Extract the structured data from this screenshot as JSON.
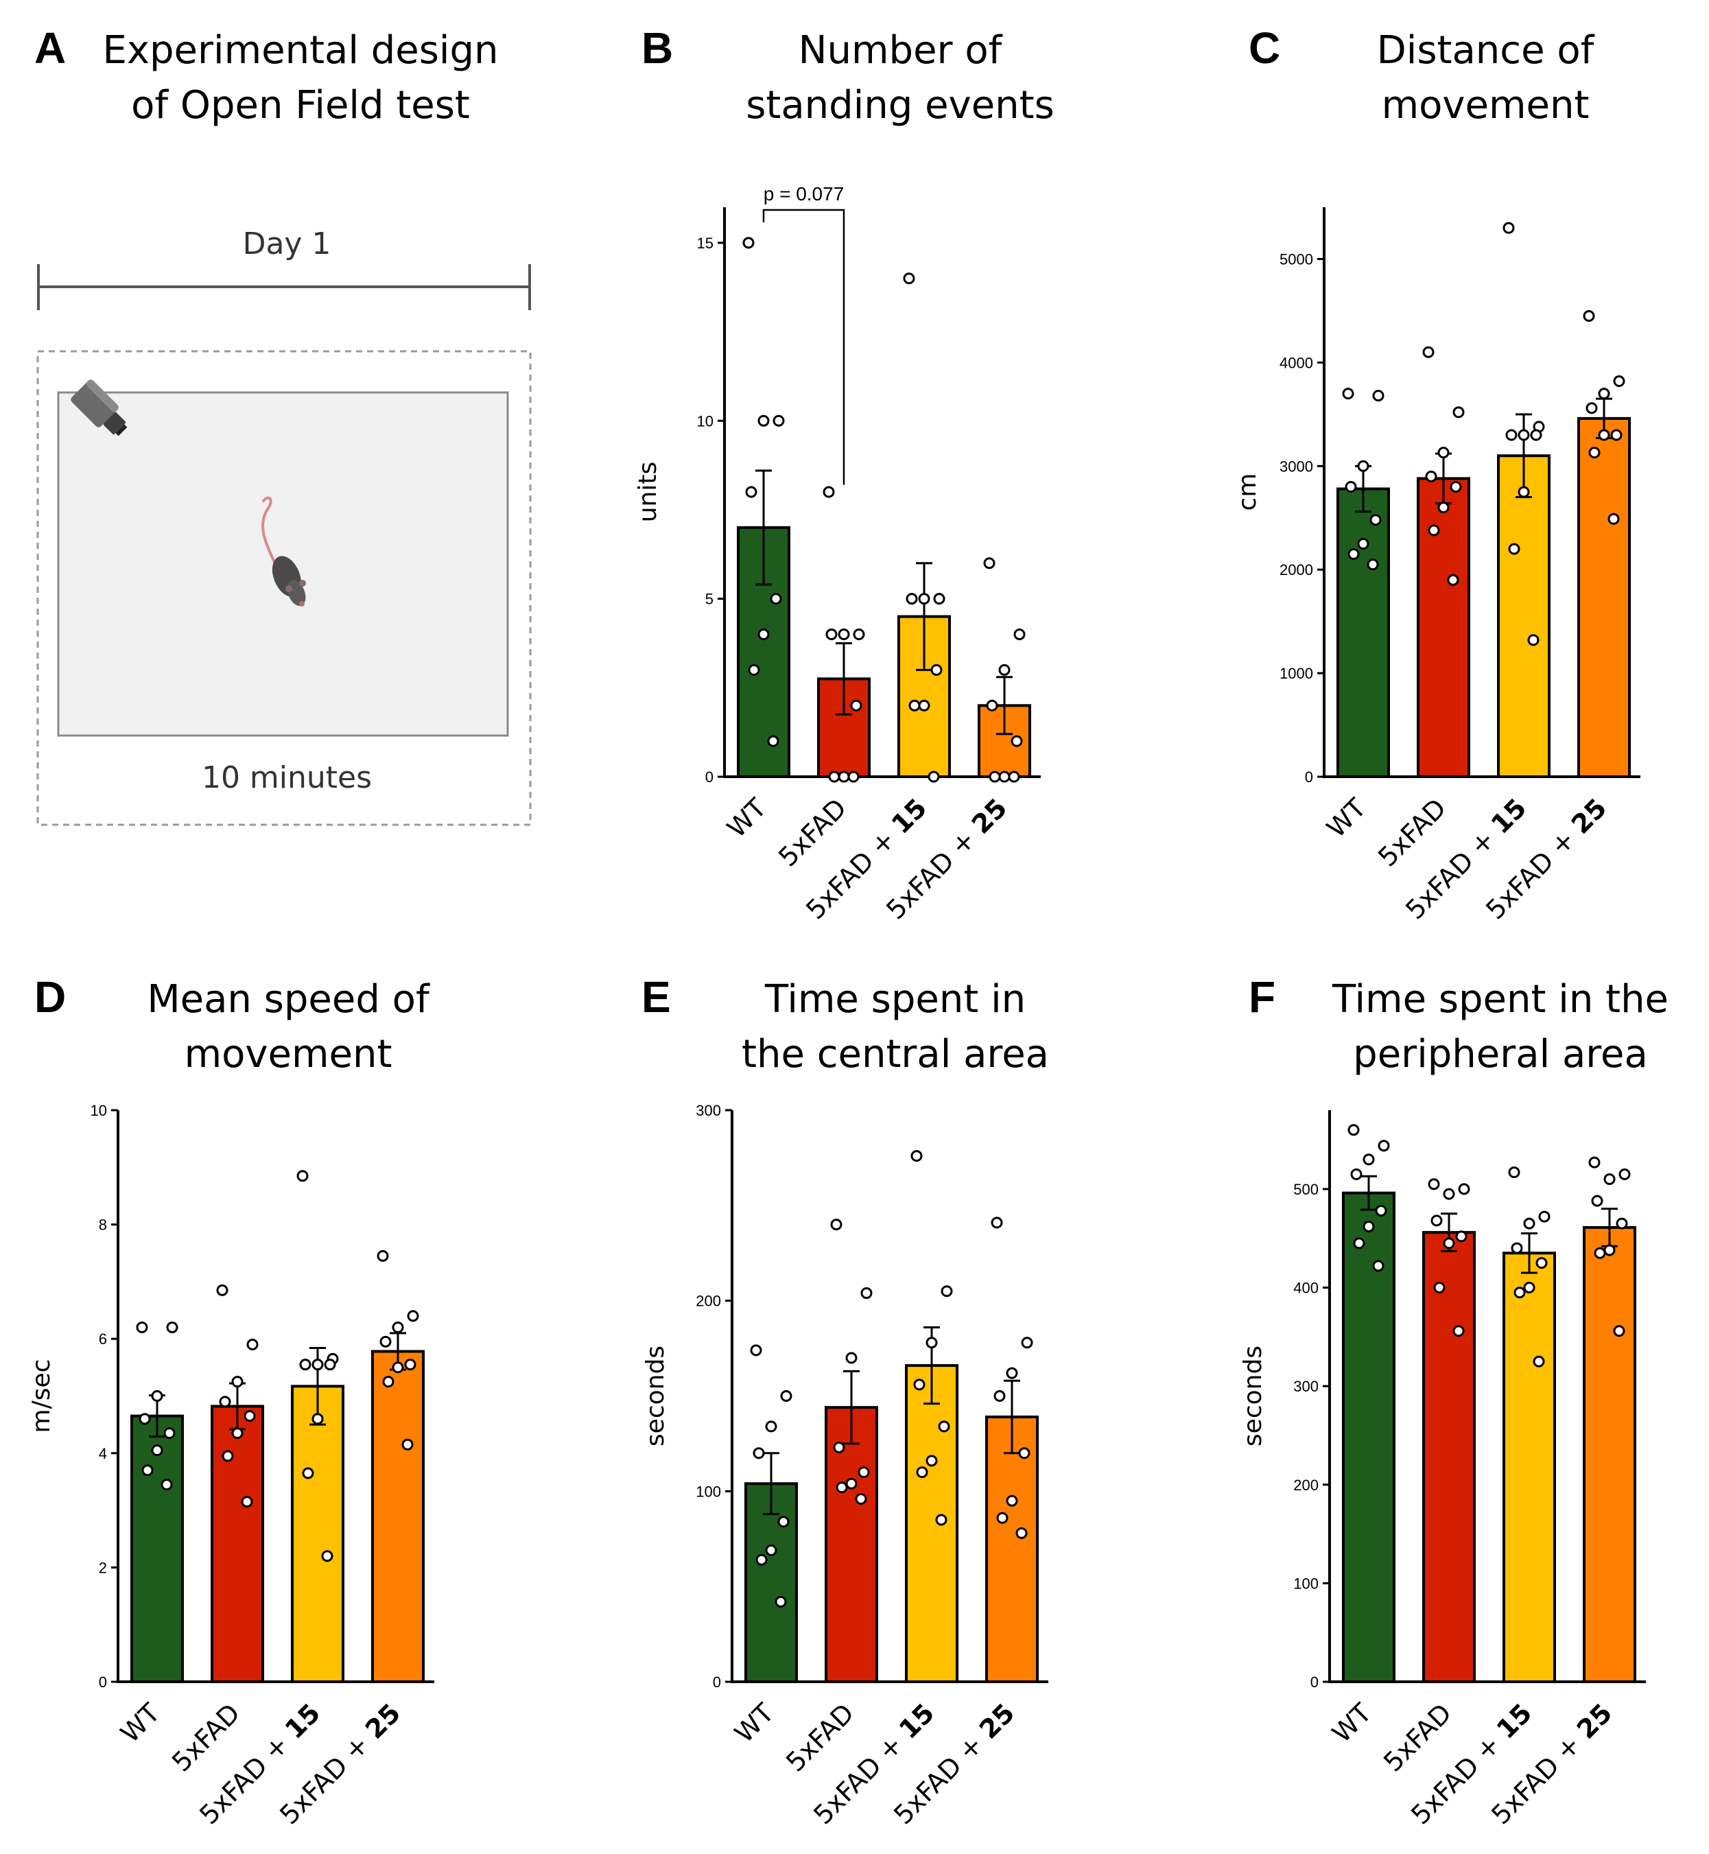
{
  "colors": {
    "WT": "#1e5c1e",
    "5xFAD": "#d42000",
    "5xFAD + 15": "#ffc000",
    "5xFAD + 25": "#ff8000"
  },
  "panel_a": {
    "label": "A",
    "title": [
      "Experimental design",
      "of Open Field test"
    ],
    "day_label": "Day 1",
    "duration_label": "10 minutes"
  },
  "chart_data": [
    {
      "id": "B",
      "type": "bar",
      "title": [
        "Number of",
        "standing events"
      ],
      "ylabel": "units",
      "ylim": [
        0,
        16
      ],
      "yticks": [
        0,
        5,
        10,
        15
      ],
      "categories": [
        {
          "prefix": "WT",
          "bold": ""
        },
        {
          "prefix": "5xFAD",
          "bold": ""
        },
        {
          "prefix": "5xFAD + ",
          "bold": "15"
        },
        {
          "prefix": "5xFAD + ",
          "bold": "25"
        }
      ],
      "means": [
        7.0,
        2.75,
        4.5,
        2.0
      ],
      "sem": [
        1.6,
        1.0,
        1.5,
        0.8
      ],
      "points": [
        [
          15,
          10,
          10,
          8,
          5,
          4,
          3,
          1
        ],
        [
          8,
          4,
          4,
          4,
          2,
          0,
          0,
          0
        ],
        [
          14,
          5,
          5,
          5,
          3,
          2,
          2,
          0
        ],
        [
          6,
          4,
          3,
          2,
          1,
          0,
          0,
          0
        ]
      ],
      "annotation": {
        "text": "p = 0.077",
        "from": 0,
        "to": 1,
        "y_left": 16,
        "y_right": 8.2
      }
    },
    {
      "id": "C",
      "type": "bar",
      "title": [
        "Distance of",
        "movement"
      ],
      "ylabel": "cm",
      "ylim": [
        0,
        5500
      ],
      "yticks": [
        0,
        1000,
        2000,
        3000,
        4000,
        5000
      ],
      "categories": [
        {
          "prefix": "WT",
          "bold": ""
        },
        {
          "prefix": "5xFAD",
          "bold": ""
        },
        {
          "prefix": "5xFAD + ",
          "bold": "15"
        },
        {
          "prefix": "5xFAD + ",
          "bold": "25"
        }
      ],
      "means": [
        2780,
        2880,
        3100,
        3460
      ],
      "sem": [
        220,
        240,
        400,
        190
      ],
      "points": [
        [
          3700,
          3680,
          3000,
          2800,
          2480,
          2250,
          2150,
          2050
        ],
        [
          4100,
          3520,
          3130,
          2900,
          2800,
          2600,
          2380,
          1900
        ],
        [
          5300,
          3380,
          3300,
          3300,
          3300,
          2750,
          2200,
          1320
        ],
        [
          4450,
          3820,
          3700,
          3560,
          3300,
          3300,
          3130,
          2490
        ]
      ]
    },
    {
      "id": "D",
      "type": "bar",
      "title": [
        "Mean speed of",
        "movement"
      ],
      "ylabel": "m/sec",
      "ylim": [
        0,
        10
      ],
      "yticks": [
        0,
        2,
        4,
        6,
        8,
        10
      ],
      "categories": [
        {
          "prefix": "WT",
          "bold": ""
        },
        {
          "prefix": "5xFAD",
          "bold": ""
        },
        {
          "prefix": "5xFAD + ",
          "bold": "15"
        },
        {
          "prefix": "5xFAD + ",
          "bold": "25"
        }
      ],
      "means": [
        4.65,
        4.82,
        5.17,
        5.78
      ],
      "sem": [
        0.36,
        0.4,
        0.67,
        0.32
      ],
      "points": [
        [
          6.2,
          6.2,
          5.0,
          4.6,
          4.35,
          4.05,
          3.7,
          3.45
        ],
        [
          6.85,
          5.9,
          5.25,
          4.9,
          4.65,
          4.35,
          3.95,
          3.15
        ],
        [
          8.85,
          5.65,
          5.55,
          5.55,
          5.55,
          4.6,
          3.65,
          2.2
        ],
        [
          7.45,
          6.4,
          6.2,
          5.95,
          5.55,
          5.5,
          5.25,
          4.15
        ]
      ]
    },
    {
      "id": "E",
      "type": "bar",
      "title": [
        "Time spent in",
        "the central area"
      ],
      "ylabel": "seconds",
      "ylim": [
        0,
        300
      ],
      "yticks": [
        0,
        100,
        200,
        300
      ],
      "categories": [
        {
          "prefix": "WT",
          "bold": ""
        },
        {
          "prefix": "5xFAD",
          "bold": ""
        },
        {
          "prefix": "5xFAD + ",
          "bold": "15"
        },
        {
          "prefix": "5xFAD + ",
          "bold": "25"
        }
      ],
      "means": [
        104,
        144,
        166,
        139
      ],
      "sem": [
        16,
        19,
        20,
        19
      ],
      "points": [
        [
          174,
          150,
          134,
          120,
          84,
          69,
          64,
          42
        ],
        [
          240,
          204,
          170,
          123,
          110,
          104,
          102,
          96
        ],
        [
          276,
          205,
          178,
          156,
          134,
          116,
          110,
          85
        ],
        [
          241,
          178,
          162,
          150,
          120,
          95,
          86,
          78
        ]
      ]
    },
    {
      "id": "F",
      "type": "bar",
      "title": [
        "Time spent in the",
        "peripheral area"
      ],
      "ylabel": "seconds",
      "ylim": [
        0,
        580
      ],
      "yticks": [
        0,
        100,
        200,
        300,
        400,
        500
      ],
      "categories": [
        {
          "prefix": "WT",
          "bold": ""
        },
        {
          "prefix": "5xFAD",
          "bold": ""
        },
        {
          "prefix": "5xFAD + ",
          "bold": "15"
        },
        {
          "prefix": "5xFAD + ",
          "bold": "25"
        }
      ],
      "means": [
        496,
        456,
        435,
        461
      ],
      "sem": [
        17,
        19,
        20,
        19
      ],
      "points": [
        [
          560,
          544,
          530,
          515,
          478,
          462,
          445,
          422
        ],
        [
          505,
          500,
          495,
          468,
          452,
          445,
          400,
          356
        ],
        [
          517,
          472,
          465,
          440,
          425,
          400,
          395,
          325
        ],
        [
          527,
          515,
          510,
          488,
          465,
          438,
          435,
          356
        ]
      ]
    }
  ]
}
